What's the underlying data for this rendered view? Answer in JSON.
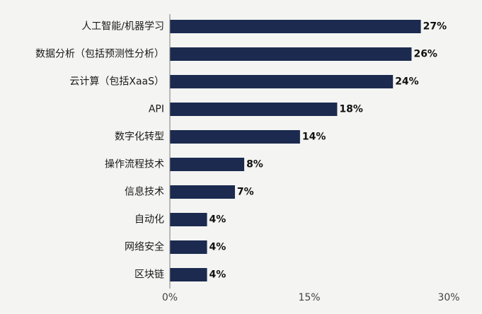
{
  "colors": {
    "bar": "#1b2a4e",
    "background": "#f4f4f3",
    "axis": "#7a7a7a"
  },
  "chart_data": {
    "type": "bar",
    "orientation": "horizontal",
    "categories": [
      "人工智能/机器学习",
      "数据分析（包括预测性分析）",
      "云计算（包括XaaS）",
      "API",
      "数字化转型",
      "操作流程技术",
      "信息技术",
      "自动化",
      "网络安全",
      "区块链"
    ],
    "values": [
      27,
      26,
      24,
      18,
      14,
      8,
      7,
      4,
      4,
      4
    ],
    "value_labels": [
      "27%",
      "26%",
      "24%",
      "18%",
      "14%",
      "8%",
      "7%",
      "4%",
      "4%",
      "4%"
    ],
    "xlim": [
      0,
      30
    ],
    "xticks": [
      0,
      15,
      30
    ],
    "xtick_labels": [
      "0%",
      "15%",
      "30%"
    ],
    "grid": false,
    "legend": "none"
  }
}
